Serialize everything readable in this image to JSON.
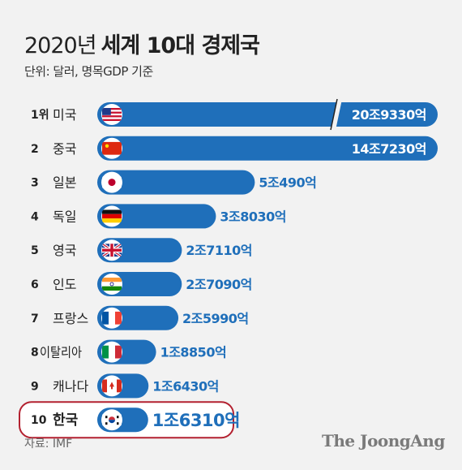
{
  "title": {
    "light": "2020년",
    "bold": "세계 10대 경제국"
  },
  "subtitle": "단위: 달러, 명목GDP 기준",
  "source": "자료: IMF",
  "logo": "The JoongAng",
  "colors": {
    "bar": "#1f6fba",
    "highlight_border": "#b32130",
    "value_text": "#1f6fba"
  },
  "chart_data": {
    "type": "bar",
    "orientation": "horizontal",
    "unit_label": "단위: 달러, 명목GDP 기준",
    "axis_break_on": "미국",
    "highlighted": "한국",
    "rows": [
      {
        "rank": "1위",
        "country": "미국",
        "flag": "us-flag-icon",
        "value": 20.933,
        "label": "20조9330억"
      },
      {
        "rank": "2",
        "country": "중국",
        "flag": "china-flag-icon",
        "value": 14.723,
        "label": "14조7230억"
      },
      {
        "rank": "3",
        "country": "일본",
        "flag": "japan-flag-icon",
        "value": 5.049,
        "label": "5조490억"
      },
      {
        "rank": "4",
        "country": "독일",
        "flag": "germany-flag-icon",
        "value": 3.803,
        "label": "3조8030억"
      },
      {
        "rank": "5",
        "country": "영국",
        "flag": "uk-flag-icon",
        "value": 2.711,
        "label": "2조7110억"
      },
      {
        "rank": "6",
        "country": "인도",
        "flag": "india-flag-icon",
        "value": 2.709,
        "label": "2조7090억"
      },
      {
        "rank": "7",
        "country": "프랑스",
        "flag": "france-flag-icon",
        "value": 2.599,
        "label": "2조5990억"
      },
      {
        "rank": "8",
        "country": "이탈리아",
        "flag": "italy-flag-icon",
        "value": 1.885,
        "label": "1조8850억"
      },
      {
        "rank": "9",
        "country": "캐나다",
        "flag": "canada-flag-icon",
        "value": 1.643,
        "label": "1조6430억"
      },
      {
        "rank": "10",
        "country": "한국",
        "flag": "korea-flag-icon",
        "value": 1.631,
        "label": "1조6310억"
      }
    ]
  }
}
